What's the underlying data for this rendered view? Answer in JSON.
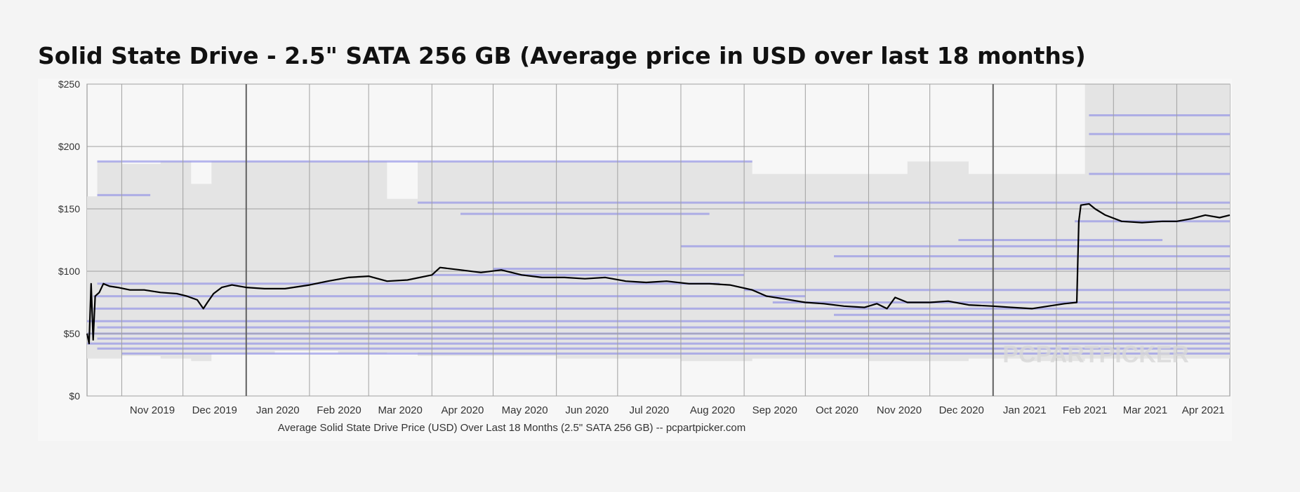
{
  "page": {
    "title": "Solid State Drive - 2.5\" SATA 256 GB (Average price in USD over last 18 months)"
  },
  "chart_data": {
    "type": "line",
    "title": "Solid State Drive - 2.5\" SATA 256 GB (Average price in USD over last 18 months)",
    "caption": "Average Solid State Drive Price (USD) Over Last 18 Months (2.5\" SATA 256 GB) -- pcpartpicker.com",
    "watermark": "PCPARTPICKER",
    "x_range": [
      "2019-10-15",
      "2021-04-27"
    ],
    "ylim": [
      0,
      250
    ],
    "y_ticks": [
      0,
      50,
      100,
      150,
      200,
      250
    ],
    "y_tick_labels": [
      "$0",
      "$50",
      "$100",
      "$150",
      "$200",
      "$250"
    ],
    "x_tick_labels": [
      {
        "date": "2019-11-01",
        "label": "Nov 2019"
      },
      {
        "date": "2019-12-01",
        "label": "Dec 2019"
      },
      {
        "date": "2020-01-01",
        "label": "Jan 2020"
      },
      {
        "date": "2020-02-01",
        "label": "Feb 2020"
      },
      {
        "date": "2020-03-01",
        "label": "Mar 2020"
      },
      {
        "date": "2020-04-01",
        "label": "Apr 2020"
      },
      {
        "date": "2020-05-01",
        "label": "May 2020"
      },
      {
        "date": "2020-06-01",
        "label": "Jun 2020"
      },
      {
        "date": "2020-07-01",
        "label": "Jul 2020"
      },
      {
        "date": "2020-08-01",
        "label": "Aug 2020"
      },
      {
        "date": "2020-09-01",
        "label": "Sep 2020"
      },
      {
        "date": "2020-10-01",
        "label": "Oct 2020"
      },
      {
        "date": "2020-11-01",
        "label": "Nov 2020"
      },
      {
        "date": "2020-12-01",
        "label": "Dec 2020"
      },
      {
        "date": "2021-01-01",
        "label": "Jan 2021"
      },
      {
        "date": "2021-02-01",
        "label": "Feb 2021"
      },
      {
        "date": "2021-03-01",
        "label": "Mar 2021"
      },
      {
        "date": "2021-04-01",
        "label": "Apr 2021"
      }
    ],
    "year_boundaries": [
      "2020-01-01",
      "2021-01-01"
    ],
    "grid": true,
    "colors": {
      "average_line": "#000000",
      "price_range_band": "#e4e4e4",
      "individual_prices": "#7f7fe6",
      "grid": "#a0a0a0",
      "year_grid": "#606060"
    },
    "range_band": [
      {
        "date": "2019-10-15",
        "min": 30,
        "max": 160
      },
      {
        "date": "2019-10-20",
        "min": 30,
        "max": 188
      },
      {
        "date": "2019-11-01",
        "min": 32,
        "max": 186
      },
      {
        "date": "2019-11-20",
        "min": 30,
        "max": 188
      },
      {
        "date": "2019-12-05",
        "min": 28,
        "max": 170
      },
      {
        "date": "2019-12-15",
        "min": 34,
        "max": 188
      },
      {
        "date": "2020-01-15",
        "min": 36,
        "max": 188
      },
      {
        "date": "2020-02-15",
        "min": 34,
        "max": 188
      },
      {
        "date": "2020-03-10",
        "min": 35,
        "max": 158
      },
      {
        "date": "2020-03-25",
        "min": 32,
        "max": 188
      },
      {
        "date": "2020-05-01",
        "min": 32,
        "max": 188
      },
      {
        "date": "2020-06-01",
        "min": 30,
        "max": 188
      },
      {
        "date": "2020-07-01",
        "min": 30,
        "max": 188
      },
      {
        "date": "2020-08-01",
        "min": 28,
        "max": 188
      },
      {
        "date": "2020-09-05",
        "min": 30,
        "max": 178
      },
      {
        "date": "2020-10-01",
        "min": 30,
        "max": 178
      },
      {
        "date": "2020-11-01",
        "min": 28,
        "max": 178
      },
      {
        "date": "2020-11-20",
        "min": 28,
        "max": 188
      },
      {
        "date": "2020-12-20",
        "min": 30,
        "max": 178
      },
      {
        "date": "2021-01-15",
        "min": 28,
        "max": 178
      },
      {
        "date": "2021-02-15",
        "min": 30,
        "max": 250
      },
      {
        "date": "2021-03-15",
        "min": 30,
        "max": 250
      },
      {
        "date": "2021-04-27",
        "min": 32,
        "max": 250
      }
    ],
    "price_levels": [
      {
        "price": 225,
        "from": "2021-02-17",
        "to": "2021-04-27"
      },
      {
        "price": 210,
        "from": "2021-02-17",
        "to": "2021-04-27"
      },
      {
        "price": 188,
        "from": "2019-10-20",
        "to": "2020-09-05"
      },
      {
        "price": 178,
        "from": "2021-02-17",
        "to": "2021-04-27"
      },
      {
        "price": 161,
        "from": "2019-10-20",
        "to": "2019-11-15"
      },
      {
        "price": 155,
        "from": "2020-03-25",
        "to": "2021-04-27"
      },
      {
        "price": 146,
        "from": "2020-04-15",
        "to": "2020-08-15"
      },
      {
        "price": 140,
        "from": "2021-02-10",
        "to": "2021-04-27"
      },
      {
        "price": 125,
        "from": "2020-12-15",
        "to": "2021-03-25"
      },
      {
        "price": 120,
        "from": "2020-08-01",
        "to": "2021-04-27"
      },
      {
        "price": 112,
        "from": "2020-10-15",
        "to": "2021-04-27"
      },
      {
        "price": 102,
        "from": "2020-05-01",
        "to": "2021-04-27"
      },
      {
        "price": 97,
        "from": "2020-04-01",
        "to": "2020-09-01"
      },
      {
        "price": 90,
        "from": "2019-10-20",
        "to": "2020-08-20"
      },
      {
        "price": 85,
        "from": "2020-09-01",
        "to": "2021-04-27"
      },
      {
        "price": 80,
        "from": "2019-10-18",
        "to": "2020-10-01"
      },
      {
        "price": 75,
        "from": "2020-09-15",
        "to": "2021-04-27"
      },
      {
        "price": 70,
        "from": "2019-10-18",
        "to": "2021-04-27"
      },
      {
        "price": 65,
        "from": "2020-10-15",
        "to": "2021-04-27"
      },
      {
        "price": 60,
        "from": "2019-10-15",
        "to": "2021-04-27"
      },
      {
        "price": 55,
        "from": "2019-10-20",
        "to": "2021-04-27"
      },
      {
        "price": 50,
        "from": "2019-10-15",
        "to": "2021-04-27"
      },
      {
        "price": 46,
        "from": "2019-10-20",
        "to": "2021-04-27"
      },
      {
        "price": 42,
        "from": "2019-10-15",
        "to": "2021-04-27"
      },
      {
        "price": 38,
        "from": "2019-10-20",
        "to": "2021-04-27"
      },
      {
        "price": 34,
        "from": "2019-11-01",
        "to": "2021-04-27"
      }
    ],
    "series": [
      {
        "points": [
          {
            "x": "2019-10-15",
            "y": 50
          },
          {
            "x": "2019-10-16",
            "y": 42
          },
          {
            "x": "2019-10-17",
            "y": 90
          },
          {
            "x": "2019-10-18",
            "y": 45
          },
          {
            "x": "2019-10-19",
            "y": 80
          },
          {
            "x": "2019-10-21",
            "y": 83
          },
          {
            "x": "2019-10-23",
            "y": 90
          },
          {
            "x": "2019-10-26",
            "y": 88
          },
          {
            "x": "2019-10-30",
            "y": 87
          },
          {
            "x": "2019-11-05",
            "y": 85
          },
          {
            "x": "2019-11-12",
            "y": 85
          },
          {
            "x": "2019-11-20",
            "y": 83
          },
          {
            "x": "2019-11-28",
            "y": 82
          },
          {
            "x": "2019-12-03",
            "y": 80
          },
          {
            "x": "2019-12-08",
            "y": 77
          },
          {
            "x": "2019-12-11",
            "y": 70
          },
          {
            "x": "2019-12-13",
            "y": 75
          },
          {
            "x": "2019-12-16",
            "y": 82
          },
          {
            "x": "2019-12-20",
            "y": 87
          },
          {
            "x": "2019-12-25",
            "y": 89
          },
          {
            "x": "2020-01-01",
            "y": 87
          },
          {
            "x": "2020-01-10",
            "y": 86
          },
          {
            "x": "2020-01-20",
            "y": 86
          },
          {
            "x": "2020-02-01",
            "y": 89
          },
          {
            "x": "2020-02-10",
            "y": 92
          },
          {
            "x": "2020-02-20",
            "y": 95
          },
          {
            "x": "2020-03-01",
            "y": 96
          },
          {
            "x": "2020-03-10",
            "y": 92
          },
          {
            "x": "2020-03-20",
            "y": 93
          },
          {
            "x": "2020-04-01",
            "y": 97
          },
          {
            "x": "2020-04-05",
            "y": 103
          },
          {
            "x": "2020-04-15",
            "y": 101
          },
          {
            "x": "2020-04-25",
            "y": 99
          },
          {
            "x": "2020-05-05",
            "y": 101
          },
          {
            "x": "2020-05-15",
            "y": 97
          },
          {
            "x": "2020-05-25",
            "y": 95
          },
          {
            "x": "2020-06-05",
            "y": 95
          },
          {
            "x": "2020-06-15",
            "y": 94
          },
          {
            "x": "2020-06-25",
            "y": 95
          },
          {
            "x": "2020-07-05",
            "y": 92
          },
          {
            "x": "2020-07-15",
            "y": 91
          },
          {
            "x": "2020-07-25",
            "y": 92
          },
          {
            "x": "2020-08-05",
            "y": 90
          },
          {
            "x": "2020-08-15",
            "y": 90
          },
          {
            "x": "2020-08-25",
            "y": 89
          },
          {
            "x": "2020-09-05",
            "y": 85
          },
          {
            "x": "2020-09-12",
            "y": 80
          },
          {
            "x": "2020-09-20",
            "y": 78
          },
          {
            "x": "2020-10-01",
            "y": 75
          },
          {
            "x": "2020-10-10",
            "y": 74
          },
          {
            "x": "2020-10-20",
            "y": 72
          },
          {
            "x": "2020-10-30",
            "y": 71
          },
          {
            "x": "2020-11-05",
            "y": 74
          },
          {
            "x": "2020-11-10",
            "y": 70
          },
          {
            "x": "2020-11-14",
            "y": 79
          },
          {
            "x": "2020-11-20",
            "y": 75
          },
          {
            "x": "2020-12-01",
            "y": 75
          },
          {
            "x": "2020-12-10",
            "y": 76
          },
          {
            "x": "2020-12-20",
            "y": 73
          },
          {
            "x": "2021-01-01",
            "y": 72
          },
          {
            "x": "2021-01-10",
            "y": 71
          },
          {
            "x": "2021-01-20",
            "y": 70
          },
          {
            "x": "2021-01-28",
            "y": 72
          },
          {
            "x": "2021-02-05",
            "y": 74
          },
          {
            "x": "2021-02-11",
            "y": 75
          },
          {
            "x": "2021-02-12",
            "y": 140
          },
          {
            "x": "2021-02-13",
            "y": 153
          },
          {
            "x": "2021-02-17",
            "y": 154
          },
          {
            "x": "2021-02-20",
            "y": 150
          },
          {
            "x": "2021-02-25",
            "y": 145
          },
          {
            "x": "2021-03-05",
            "y": 140
          },
          {
            "x": "2021-03-15",
            "y": 139
          },
          {
            "x": "2021-03-25",
            "y": 140
          },
          {
            "x": "2021-04-01",
            "y": 140
          },
          {
            "x": "2021-04-08",
            "y": 142
          },
          {
            "x": "2021-04-15",
            "y": 145
          },
          {
            "x": "2021-04-22",
            "y": 143
          },
          {
            "x": "2021-04-27",
            "y": 145
          }
        ]
      }
    ]
  }
}
